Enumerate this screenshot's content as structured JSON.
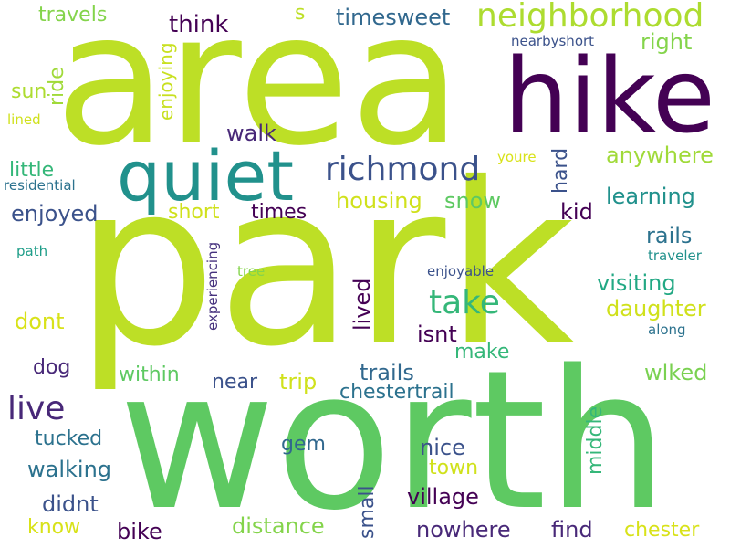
{
  "words": [
    {
      "text": "area",
      "color": "#bddf26"
    },
    {
      "text": "park",
      "color": "#bddf26"
    },
    {
      "text": "worth",
      "color": "#5ec962"
    },
    {
      "text": "hike",
      "color": "#440154"
    },
    {
      "text": "quiet",
      "color": "#21918c"
    },
    {
      "text": "neighborhood",
      "color": "#addc30"
    },
    {
      "text": "richmond",
      "color": "#3b528b"
    },
    {
      "text": "take",
      "color": "#35b779"
    },
    {
      "text": "live",
      "color": "#482878"
    },
    {
      "text": "travels",
      "color": "#84d44b"
    },
    {
      "text": "think",
      "color": "#440154"
    },
    {
      "text": "s",
      "color": "#bddf26"
    },
    {
      "text": "timesweet",
      "color": "#31688e"
    },
    {
      "text": "nearbyshort",
      "color": "#3b528b"
    },
    {
      "text": "right",
      "color": "#84d44b"
    },
    {
      "text": "ride",
      "color": "#a0da39"
    },
    {
      "text": "enjoying",
      "color": "#c8e020"
    },
    {
      "text": "sun",
      "color": "#addc30"
    },
    {
      "text": "lined",
      "color": "#d0e11c"
    },
    {
      "text": "walk",
      "color": "#482878"
    },
    {
      "text": "hard",
      "color": "#3b528b"
    },
    {
      "text": "anywhere",
      "color": "#a0da39"
    },
    {
      "text": "youre",
      "color": "#d8e219"
    },
    {
      "text": "little",
      "color": "#35b779"
    },
    {
      "text": "residential",
      "color": "#2c728e"
    },
    {
      "text": "housing",
      "color": "#d0e11c"
    },
    {
      "text": "snow",
      "color": "#5ec962"
    },
    {
      "text": "learning",
      "color": "#21918c"
    },
    {
      "text": "enjoyed",
      "color": "#3b528b"
    },
    {
      "text": "short",
      "color": "#d0e11c"
    },
    {
      "text": "times",
      "color": "#440154"
    },
    {
      "text": "kid",
      "color": "#440154"
    },
    {
      "text": "rails",
      "color": "#2c728e"
    },
    {
      "text": "path",
      "color": "#1f9e89"
    },
    {
      "text": "tree",
      "color": "#84d44b"
    },
    {
      "text": "experiencing",
      "color": "#46327e"
    },
    {
      "text": "enjoyable",
      "color": "#3b528b"
    },
    {
      "text": "traveler",
      "color": "#21918c"
    },
    {
      "text": "visiting",
      "color": "#22a884"
    },
    {
      "text": "lived",
      "color": "#440154"
    },
    {
      "text": "daughter",
      "color": "#d0e11c"
    },
    {
      "text": "dont",
      "color": "#d8e219"
    },
    {
      "text": "isnt",
      "color": "#440154"
    },
    {
      "text": "along",
      "color": "#2c728e"
    },
    {
      "text": "make",
      "color": "#35b779"
    },
    {
      "text": "dog",
      "color": "#482878"
    },
    {
      "text": "within",
      "color": "#5ec962"
    },
    {
      "text": "trails",
      "color": "#31688e"
    },
    {
      "text": "wlked",
      "color": "#7ad151"
    },
    {
      "text": "near",
      "color": "#3b528b"
    },
    {
      "text": "trip",
      "color": "#d0e11c"
    },
    {
      "text": "chestertrail",
      "color": "#2c728e"
    },
    {
      "text": "middle",
      "color": "#35b779"
    },
    {
      "text": "tucked",
      "color": "#2c728e"
    },
    {
      "text": "gem",
      "color": "#31688e"
    },
    {
      "text": "nice",
      "color": "#3b528b"
    },
    {
      "text": "walking",
      "color": "#2c728e"
    },
    {
      "text": "town",
      "color": "#d0e11c"
    },
    {
      "text": "small",
      "color": "#3b528b"
    },
    {
      "text": "village",
      "color": "#440154"
    },
    {
      "text": "didnt",
      "color": "#3b528b"
    },
    {
      "text": "know",
      "color": "#d8e219"
    },
    {
      "text": "distance",
      "color": "#84d44b"
    },
    {
      "text": "nowhere",
      "color": "#482878"
    },
    {
      "text": "find",
      "color": "#482878"
    },
    {
      "text": "chester",
      "color": "#d8e219"
    },
    {
      "text": "bike",
      "color": "#440154"
    }
  ]
}
